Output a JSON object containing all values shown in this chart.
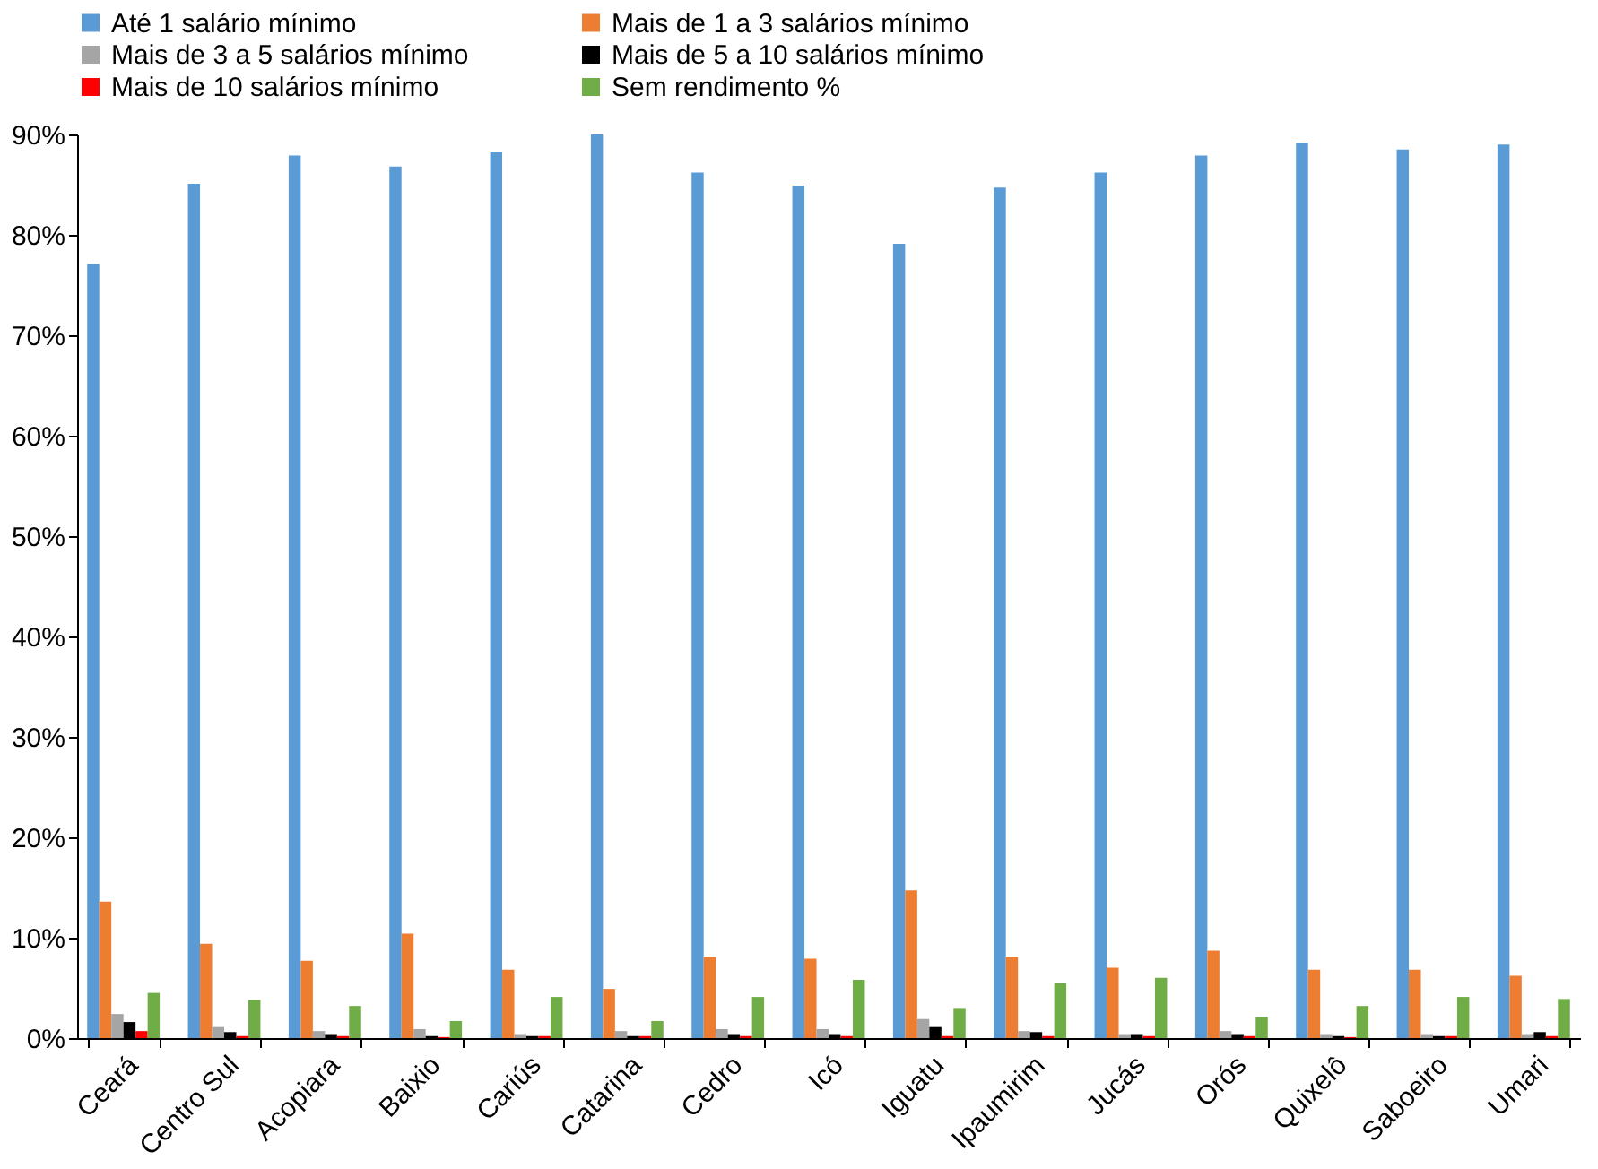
{
  "chart_data": {
    "type": "bar",
    "categories": [
      "Ceará",
      "Centro Sul",
      "Acopiara",
      "Baixio",
      "Cariús",
      "Catarina",
      "Cedro",
      "Icó",
      "Iguatu",
      "Ipaumirim",
      "Jucás",
      "Orós",
      "Quixelô",
      "Saboeiro",
      "Umari"
    ],
    "series": [
      {
        "name": "Até 1 salário mínimo",
        "color": "#5b9bd5",
        "values": [
          77.1,
          85.1,
          87.9,
          86.8,
          88.3,
          90.0,
          86.2,
          84.9,
          79.1,
          84.7,
          86.2,
          87.9,
          89.2,
          88.5,
          89.0
        ]
      },
      {
        "name": "Mais de 1 a 3 salários mínimo",
        "color": "#ed7d31",
        "values": [
          13.6,
          9.4,
          7.7,
          10.4,
          6.8,
          4.9,
          8.1,
          7.9,
          14.7,
          8.1,
          7.0,
          8.7,
          6.8,
          6.8,
          6.2
        ]
      },
      {
        "name": "Mais de 3 a 5 salários mínimo",
        "color": "#a5a5a5",
        "values": [
          2.4,
          1.1,
          0.7,
          0.9,
          0.4,
          0.7,
          0.9,
          0.9,
          1.9,
          0.7,
          0.4,
          0.7,
          0.4,
          0.4,
          0.4
        ]
      },
      {
        "name": "Mais de 5 a 10 salários mínimo",
        "color": "#000000",
        "values": [
          1.6,
          0.6,
          0.4,
          0.2,
          0.2,
          0.2,
          0.4,
          0.4,
          1.1,
          0.6,
          0.4,
          0.4,
          0.2,
          0.2,
          0.6
        ]
      },
      {
        "name": "Mais de 10 salários mínimo",
        "color": "#ff0000",
        "values": [
          0.7,
          0.2,
          0.2,
          0.1,
          0.2,
          0.2,
          0.2,
          0.2,
          0.2,
          0.2,
          0.2,
          0.2,
          0.1,
          0.2,
          0.2
        ]
      },
      {
        "name": "Sem rendimento %",
        "color": "#70ad47",
        "values": [
          4.5,
          3.8,
          3.2,
          1.7,
          4.1,
          1.7,
          4.1,
          5.8,
          3.0,
          5.5,
          6.0,
          2.1,
          3.2,
          4.1,
          3.9
        ]
      }
    ],
    "ylim": [
      0,
      90
    ],
    "yticks": [
      {
        "value": 0,
        "label": "0%"
      },
      {
        "value": 10,
        "label": "10%"
      },
      {
        "value": 20,
        "label": "20%"
      },
      {
        "value": 30,
        "label": "30%"
      },
      {
        "value": 40,
        "label": "40%"
      },
      {
        "value": 50,
        "label": "50%"
      },
      {
        "value": 60,
        "label": "60%"
      },
      {
        "value": 70,
        "label": "70%"
      },
      {
        "value": 80,
        "label": "80%"
      },
      {
        "value": 90,
        "label": "90%"
      }
    ],
    "grid": false,
    "legend": "top"
  }
}
